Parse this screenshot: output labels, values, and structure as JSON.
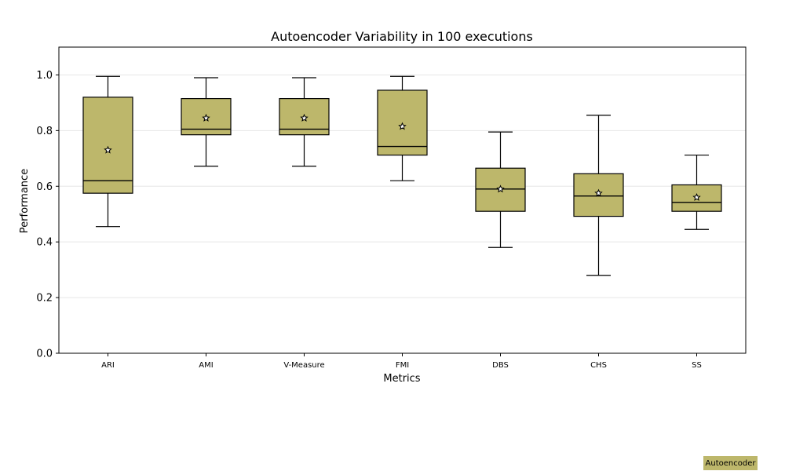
{
  "chart_data": {
    "type": "boxplot",
    "title": "Autoencoder Variability in 100 executions",
    "xlabel": "Metrics",
    "ylabel": "Performance",
    "ylim": [
      0.0,
      1.1
    ],
    "yticks": [
      0.0,
      0.2,
      0.4,
      0.6,
      0.8,
      1.0
    ],
    "ytick_labels": [
      "0.0",
      "0.2",
      "0.4",
      "0.6",
      "0.8",
      "1.0"
    ],
    "grid": true,
    "box_color": "#bdb76b",
    "legend": {
      "label": "Autoencoder",
      "position": "bottom-right"
    },
    "categories": [
      "ARI",
      "AMI",
      "V-Measure",
      "FMI",
      "DBS",
      "CHS",
      "SS"
    ],
    "boxes": [
      {
        "category": "ARI",
        "min": 0.455,
        "q1": 0.575,
        "median": 0.62,
        "q3": 0.92,
        "max": 0.995,
        "mean": 0.73
      },
      {
        "category": "AMI",
        "min": 0.672,
        "q1": 0.785,
        "median": 0.805,
        "q3": 0.915,
        "max": 0.99,
        "mean": 0.845
      },
      {
        "category": "V-Measure",
        "min": 0.672,
        "q1": 0.785,
        "median": 0.805,
        "q3": 0.915,
        "max": 0.99,
        "mean": 0.845
      },
      {
        "category": "FMI",
        "min": 0.62,
        "q1": 0.712,
        "median": 0.743,
        "q3": 0.945,
        "max": 0.995,
        "mean": 0.815
      },
      {
        "category": "DBS",
        "min": 0.38,
        "q1": 0.51,
        "median": 0.59,
        "q3": 0.665,
        "max": 0.795,
        "mean": 0.59
      },
      {
        "category": "CHS",
        "min": 0.28,
        "q1": 0.492,
        "median": 0.565,
        "q3": 0.645,
        "max": 0.855,
        "mean": 0.575
      },
      {
        "category": "SS",
        "min": 0.445,
        "q1": 0.51,
        "median": 0.542,
        "q3": 0.605,
        "max": 0.712,
        "mean": 0.56
      }
    ]
  }
}
